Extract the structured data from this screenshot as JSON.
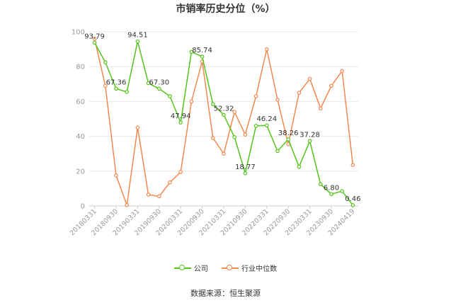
{
  "title": "市销率历史分位（%）",
  "source_text": "数据来源：恒生聚源",
  "legend": {
    "company": "公司",
    "industry": "行业中位数"
  },
  "colors": {
    "company": "#52c41a",
    "industry": "#f5874f",
    "grid": "#e8e8e8",
    "axis_text": "#999999",
    "label_text": "#333333"
  },
  "chart_data": {
    "type": "line",
    "ylim": [
      0,
      100
    ],
    "yticks": [
      0,
      20,
      40,
      60,
      80,
      100
    ],
    "grid": true,
    "legend_position": "bottom",
    "x": [
      "20180331",
      "20180630",
      "20180930",
      "20181231",
      "20190331",
      "20190630",
      "20190930",
      "20191231",
      "20200331",
      "20200630",
      "20200930",
      "20201231",
      "20210331",
      "20210630",
      "20210930",
      "20211231",
      "20220331",
      "20220630",
      "20220930",
      "20221231",
      "20230331",
      "20230630",
      "20230930",
      "20231231",
      "20240419"
    ],
    "xtick_labels": [
      "20180331",
      "20180930",
      "20190331",
      "20190930",
      "20200331",
      "20200930",
      "20210331",
      "20210930",
      "20220331",
      "20220930",
      "20230331",
      "20230930",
      "20240419"
    ],
    "series": [
      {
        "name": "公司",
        "values": [
          93.79,
          82.5,
          67.36,
          65.5,
          94.51,
          70.5,
          67.3,
          63.0,
          47.94,
          88.5,
          85.74,
          58.5,
          52.32,
          39.5,
          18.77,
          46.0,
          46.24,
          31.5,
          38.26,
          22.5,
          37.28,
          12.5,
          6.8,
          8.5,
          0.46
        ],
        "data_labels": {
          "0": "93.79",
          "2": "67.36",
          "4": "94.51",
          "6": "67.30",
          "8": "47.94",
          "10": "85.74",
          "12": "52.32",
          "14": "18.77",
          "16": "46.24",
          "18": "38.26",
          "20": "37.28",
          "22": "6.80",
          "24": "0.46"
        }
      },
      {
        "name": "行业中位数",
        "values": [
          96.0,
          69.0,
          17.5,
          0.5,
          45.0,
          6.5,
          5.5,
          13.5,
          19.5,
          60.0,
          83.0,
          39.0,
          30.0,
          54.0,
          41.0,
          63.0,
          90.0,
          61.0,
          35.5,
          65.0,
          73.0,
          56.0,
          69.0,
          77.5,
          23.5
        ]
      }
    ]
  }
}
